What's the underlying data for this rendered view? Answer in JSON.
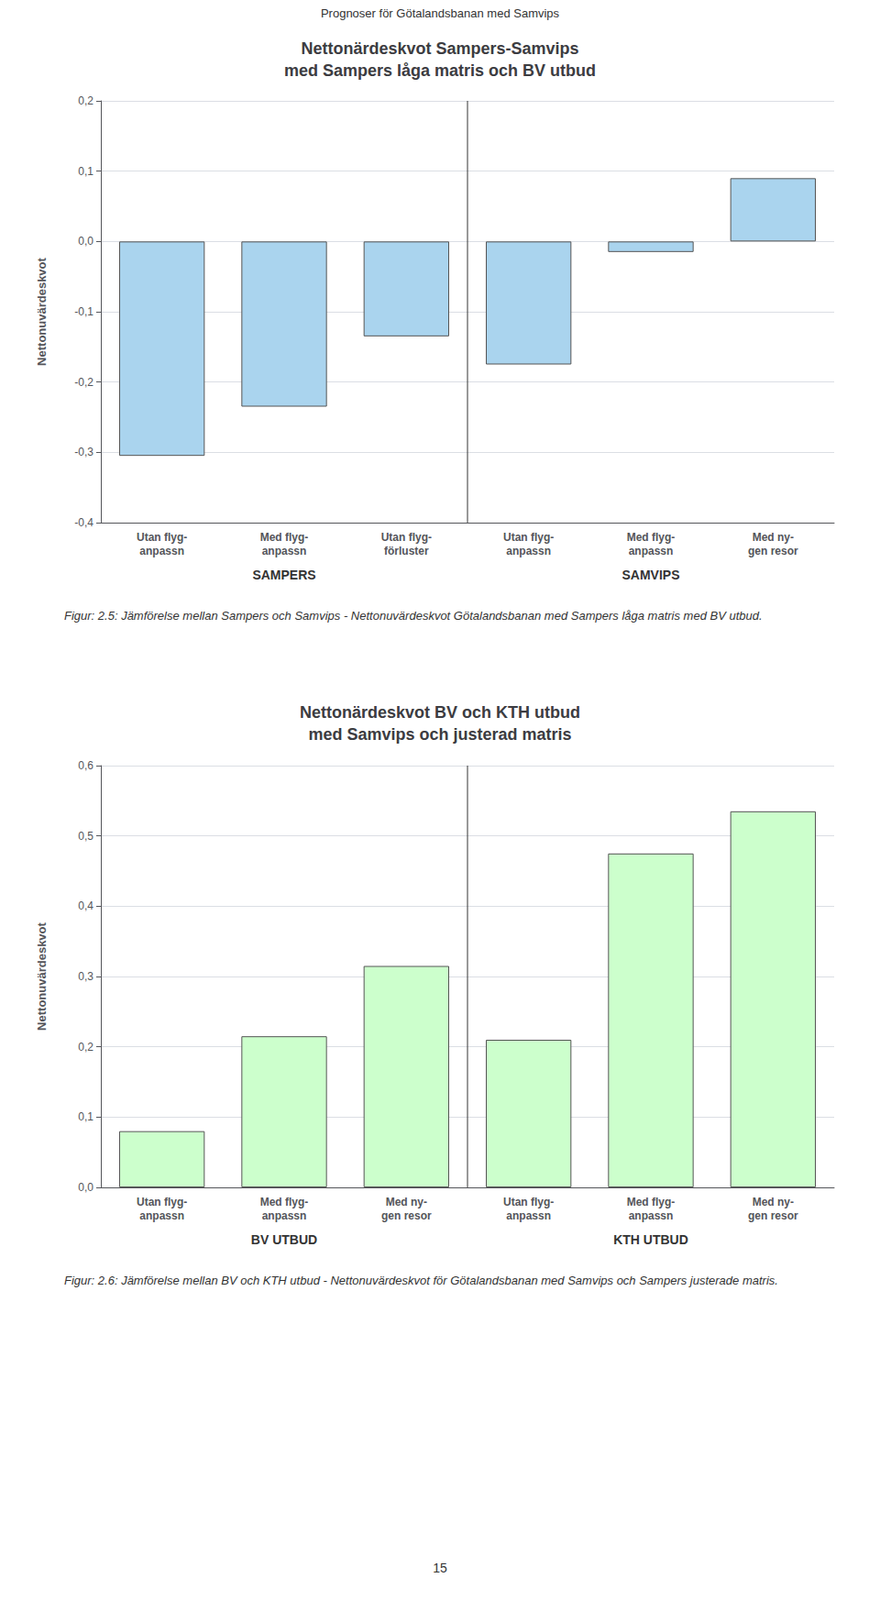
{
  "annotations": [
    "Prognoser för Götalandsbanan med Samvips",
    "15"
  ],
  "chart_data": [
    {
      "type": "bar",
      "title": "Nettonärdeskvot Sampers-Samvips\nmed Sampers låga matris och BV utbud",
      "ylabel": "Nettonuvärdeskvot",
      "categories": [
        "Utan flyg-\nanpassn",
        "Med flyg-\nanpassn",
        "Utan flyg-\nförluster",
        "Utan flyg-\nanpassn",
        "Med flyg-\nanpassn",
        "Med ny-\ngen resor"
      ],
      "values": [
        -0.305,
        -0.235,
        -0.135,
        -0.175,
        -0.015,
        0.09
      ],
      "color": "#aad4ee",
      "ylim": [
        -0.4,
        0.2
      ],
      "yticks": [
        {
          "value": -0.4,
          "label": "-0,4"
        },
        {
          "value": -0.3,
          "label": "-0,3"
        },
        {
          "value": -0.2,
          "label": "-0,2"
        },
        {
          "value": -0.1,
          "label": "-0,1"
        },
        {
          "value": 0,
          "label": "0,0"
        },
        {
          "value": 0.1,
          "label": "0,1"
        },
        {
          "value": 0.2,
          "label": "0,2"
        }
      ],
      "grid": true,
      "annotations": [
        "SAMPERS",
        "SAMVIPS",
        "Figur: 2.5: Jämförelse mellan Sampers och Samvips - Nettonuvärdeskvot Götalandsbanan med Sampers låga matris med BV utbud."
      ]
    },
    {
      "type": "bar",
      "title": "Nettonärdeskvot BV och KTH utbud\nmed Samvips och justerad matris",
      "ylabel": "Nettonuvärdeskvot",
      "categories": [
        "Utan flyg-\nanpassn",
        "Med flyg-\nanpassn",
        "Med ny-\ngen resor",
        "Utan flyg-\nanpassn",
        "Med flyg-\nanpassn",
        "Med ny-\ngen resor"
      ],
      "values": [
        0.08,
        0.215,
        0.315,
        0.21,
        0.475,
        0.535
      ],
      "color": "#ccffcc",
      "ylim": [
        0.0,
        0.6
      ],
      "yticks": [
        {
          "value": 0,
          "label": "0,0"
        },
        {
          "value": 0.1,
          "label": "0,1"
        },
        {
          "value": 0.2,
          "label": "0,2"
        },
        {
          "value": 0.3,
          "label": "0,3"
        },
        {
          "value": 0.4,
          "label": "0,4"
        },
        {
          "value": 0.5,
          "label": "0,5"
        },
        {
          "value": 0.6,
          "label": "0,6"
        }
      ],
      "grid": true,
      "annotations": [
        "BV UTBUD",
        "KTH UTBUD",
        "Figur: 2.6: Jämförelse mellan BV och KTH utbud - Nettonuvärdeskvot för Götalandsbanan med Samvips och Sampers justerade matris."
      ]
    }
  ]
}
